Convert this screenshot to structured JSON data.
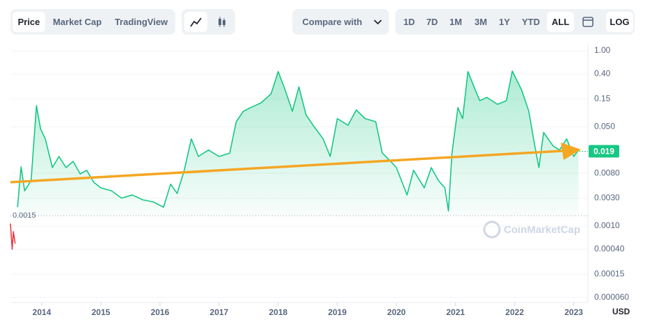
{
  "toolbar": {
    "tabs": [
      "Price",
      "Market Cap",
      "TradingView"
    ],
    "compare": "Compare with",
    "ranges": [
      "1D",
      "7D",
      "1M",
      "3M",
      "1Y",
      "YTD",
      "ALL"
    ],
    "scale": "LOG"
  },
  "chart_data": {
    "type": "line",
    "log_y": true,
    "grid": true,
    "watermark": "CoinMarketCap",
    "currency": "USD",
    "current_price": 0.019,
    "reference_line": 0.0015,
    "xlim": [
      2013.47,
      2023.24
    ],
    "xticks": [
      2014,
      2015,
      2016,
      2017,
      2018,
      2019,
      2020,
      2021,
      2022,
      2023
    ],
    "ylim": [
      4.9e-05,
      1.35
    ],
    "yticks": [
      {
        "value": 1,
        "label": "1.00"
      },
      {
        "value": 0.4,
        "label": "0.40"
      },
      0.15,
      {
        "value": 0.05,
        "label": "0.050"
      },
      {
        "value": 0.008,
        "label": "0.0080"
      },
      {
        "value": 0.003,
        "label": "0.0030"
      },
      {
        "value": 0.001,
        "label": "0.0010"
      },
      {
        "value": 0.0004,
        "label": "0.00040"
      },
      0.00015,
      {
        "value": 6e-05,
        "label": "0.000060"
      }
    ],
    "series": [
      {
        "color": "#ea3943",
        "x": [
          2013.47,
          2013.5,
          2013.52,
          2013.55
        ],
        "values": [
          0.0011,
          0.0004,
          0.0008,
          0.0005
        ]
      },
      {
        "color": "#16c784",
        "x": [
          2013.59,
          2013.65,
          2013.71,
          2013.82,
          2013.91,
          2013.98,
          2014.06,
          2014.18,
          2014.29,
          2014.41,
          2014.53,
          2014.65,
          2014.76,
          2014.88,
          2015.0,
          2015.18,
          2015.35,
          2015.53,
          2015.71,
          2015.88,
          2016.06,
          2016.18,
          2016.29,
          2016.41,
          2016.53,
          2016.65,
          2016.82,
          2017.0,
          2017.18,
          2017.29,
          2017.41,
          2017.53,
          2017.71,
          2017.88,
          2018.0,
          2018.12,
          2018.24,
          2018.35,
          2018.47,
          2018.59,
          2018.76,
          2018.88,
          2019.0,
          2019.18,
          2019.32,
          2019.47,
          2019.65,
          2019.76,
          2019.88,
          2020.0,
          2020.18,
          2020.29,
          2020.47,
          2020.59,
          2020.71,
          2020.82,
          2020.88,
          2020.94,
          2021.04,
          2021.12,
          2021.21,
          2021.29,
          2021.41,
          2021.53,
          2021.71,
          2021.86,
          2021.96,
          2022.12,
          2022.24,
          2022.33,
          2022.41,
          2022.49,
          2022.65,
          2022.76,
          2022.88,
          2023.0,
          2023.08
        ],
        "values": [
          0.0021,
          0.0103,
          0.004,
          0.006,
          0.115,
          0.046,
          0.031,
          0.01,
          0.0155,
          0.01,
          0.0128,
          0.0078,
          0.009,
          0.0056,
          0.0045,
          0.004,
          0.003,
          0.0034,
          0.0028,
          0.0026,
          0.0021,
          0.0052,
          0.0036,
          0.009,
          0.031,
          0.0155,
          0.02,
          0.0155,
          0.0177,
          0.061,
          0.092,
          0.106,
          0.128,
          0.183,
          0.44,
          0.21,
          0.092,
          0.24,
          0.08,
          0.053,
          0.031,
          0.0155,
          0.069,
          0.053,
          0.097,
          0.069,
          0.061,
          0.0177,
          0.0135,
          0.01,
          0.0034,
          0.009,
          0.0045,
          0.01,
          0.006,
          0.0045,
          0.0018,
          0.0177,
          0.106,
          0.069,
          0.44,
          0.276,
          0.14,
          0.159,
          0.121,
          0.14,
          0.45,
          0.21,
          0.092,
          0.027,
          0.01,
          0.04,
          0.0235,
          0.02,
          0.031,
          0.0155,
          0.02
        ]
      }
    ]
  }
}
